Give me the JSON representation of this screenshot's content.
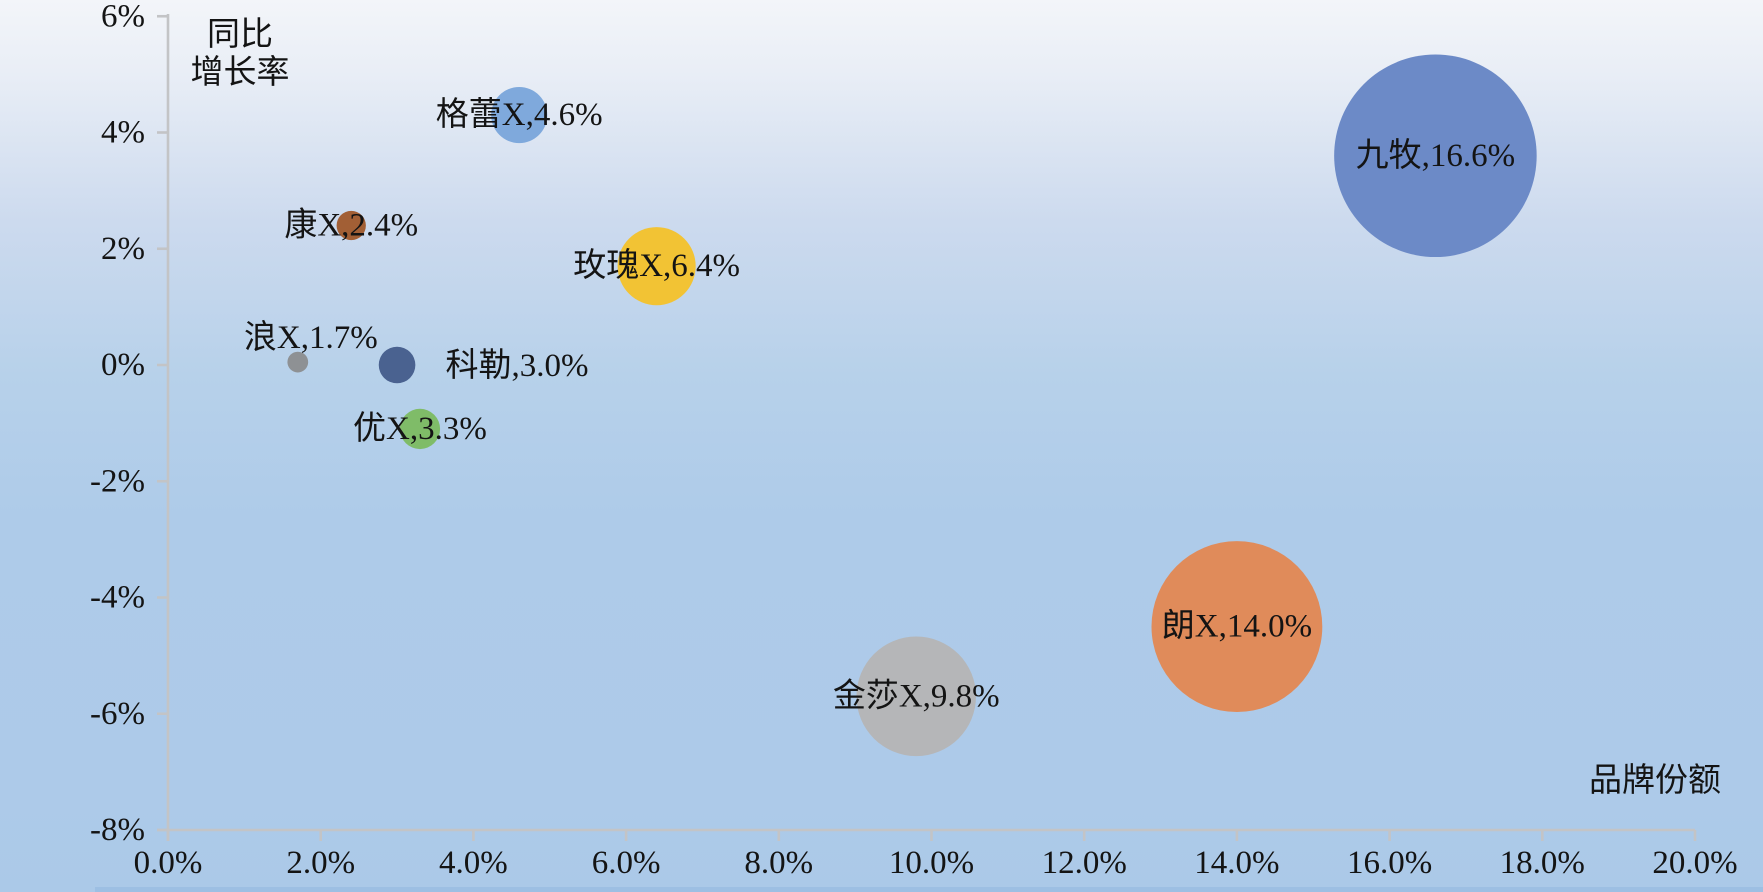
{
  "chart_data": {
    "type": "bubble",
    "title": "",
    "x_axis": {
      "title": "品牌份额",
      "range": [
        0,
        20
      ],
      "ticks": [
        {
          "v": 0,
          "label": "0.0%"
        },
        {
          "v": 2,
          "label": "2.0%"
        },
        {
          "v": 4,
          "label": "4.0%"
        },
        {
          "v": 6,
          "label": "6.0%"
        },
        {
          "v": 8,
          "label": "8.0%"
        },
        {
          "v": 10,
          "label": "10.0%"
        },
        {
          "v": 12,
          "label": "12.0%"
        },
        {
          "v": 14,
          "label": "14.0%"
        },
        {
          "v": 16,
          "label": "16.0%"
        },
        {
          "v": 18,
          "label": "18.0%"
        },
        {
          "v": 20,
          "label": "20.0%"
        }
      ]
    },
    "y_axis": {
      "title_lines": [
        "同比",
        "增长率"
      ],
      "range": [
        -8,
        6
      ],
      "ticks": [
        {
          "v": 6,
          "label": "6%"
        },
        {
          "v": 4,
          "label": "4%"
        },
        {
          "v": 2,
          "label": "2%"
        },
        {
          "v": 0,
          "label": "0%"
        },
        {
          "v": -2,
          "label": "-2%"
        },
        {
          "v": -4,
          "label": "-4%"
        },
        {
          "v": -6,
          "label": "-6%"
        },
        {
          "v": -8,
          "label": "-8%"
        }
      ]
    },
    "grid": false,
    "legend": "none",
    "axis_color": "#c3c4c6",
    "text_color": "#141414",
    "bottom_strip_color": "#9dbfe3",
    "series": [
      {
        "name": "九牧",
        "label": "九牧,16.6%",
        "share_pct": 16.6,
        "growth_pct": 3.6,
        "color": "#6c8ac7"
      },
      {
        "name": "朗X",
        "label": "朗X,14.0%",
        "share_pct": 14.0,
        "growth_pct": -4.5,
        "color": "#e08b5a"
      },
      {
        "name": "金莎X",
        "label": "金莎X,9.8%",
        "share_pct": 9.8,
        "growth_pct": -5.7,
        "color": "#b5b6b8"
      },
      {
        "name": "玫瑰X",
        "label": "玫瑰X,6.4%",
        "share_pct": 6.4,
        "growth_pct": 1.7,
        "color": "#f2c334"
      },
      {
        "name": "格蕾X",
        "label": "格蕾X,4.6%",
        "share_pct": 4.6,
        "growth_pct": 4.3,
        "color": "#7fa9dc"
      },
      {
        "name": "优X",
        "label": "优X,3.3%",
        "share_pct": 3.3,
        "growth_pct": -1.1,
        "color": "#7fbc68"
      },
      {
        "name": "科勒",
        "label": "科勒,3.0%",
        "share_pct": 3.0,
        "growth_pct": 0.0,
        "color": "#4a6290",
        "label_dx": 120,
        "label_dy": 1
      },
      {
        "name": "康X",
        "label": "康X,2.4%",
        "share_pct": 2.4,
        "growth_pct": 2.4,
        "color": "#a25f35"
      },
      {
        "name": "浪X",
        "label": "浪X,1.7%",
        "share_pct": 1.7,
        "growth_pct": 0.05,
        "color": "#8e9194",
        "label_dx": 13,
        "label_dy": -24
      }
    ]
  }
}
